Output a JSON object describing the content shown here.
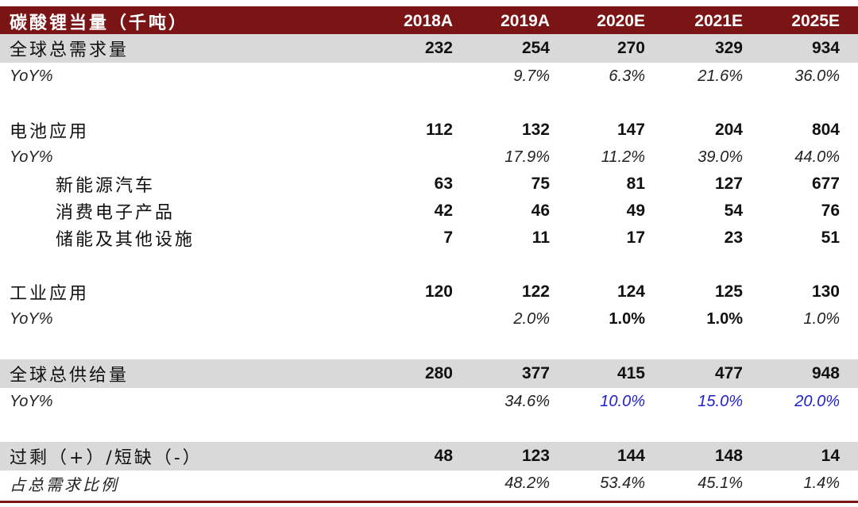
{
  "table": {
    "header": {
      "label": "碳酸锂当量（千吨）",
      "years": [
        "2018A",
        "2019A",
        "2020E",
        "2021E",
        "2025E"
      ]
    },
    "rows": {
      "total_demand": {
        "label": "全球总需求量",
        "values": [
          "232",
          "254",
          "270",
          "329",
          "934"
        ]
      },
      "total_demand_yoy": {
        "label": "YoY%",
        "values": [
          "",
          "9.7%",
          "6.3%",
          "21.6%",
          "36.0%"
        ]
      },
      "battery": {
        "label": "电池应用",
        "values": [
          "112",
          "132",
          "147",
          "204",
          "804"
        ]
      },
      "battery_yoy": {
        "label": "YoY%",
        "values": [
          "",
          "17.9%",
          "11.2%",
          "39.0%",
          "44.0%"
        ]
      },
      "nev": {
        "label": "新能源汽车",
        "values": [
          "63",
          "75",
          "81",
          "127",
          "677"
        ]
      },
      "consumer": {
        "label": "消费电子产品",
        "values": [
          "42",
          "46",
          "49",
          "54",
          "76"
        ]
      },
      "storage": {
        "label": "储能及其他设施",
        "values": [
          "7",
          "11",
          "17",
          "23",
          "51"
        ]
      },
      "industrial": {
        "label": "工业应用",
        "values": [
          "120",
          "122",
          "124",
          "125",
          "130"
        ]
      },
      "industrial_yoy": {
        "label": "YoY%",
        "values": [
          "",
          "2.0%",
          "1.0%",
          "1.0%",
          "1.0%"
        ]
      },
      "total_supply": {
        "label": "全球总供给量",
        "values": [
          "280",
          "377",
          "415",
          "477",
          "948"
        ]
      },
      "total_supply_yoy": {
        "label": "YoY%",
        "values": [
          "",
          "34.6%",
          "10.0%",
          "15.0%",
          "20.0%"
        ]
      },
      "surplus": {
        "label": "过剩（+）/短缺（-）",
        "values": [
          "48",
          "123",
          "144",
          "148",
          "14"
        ]
      },
      "surplus_ratio": {
        "label": "占总需求比例",
        "values": [
          "",
          "48.2%",
          "53.4%",
          "45.1%",
          "1.4%"
        ]
      }
    },
    "colors": {
      "header_bg": "#7b1414",
      "shade_bg": "#d9d9d9",
      "estimate_blue": "#1f1fcc"
    }
  }
}
